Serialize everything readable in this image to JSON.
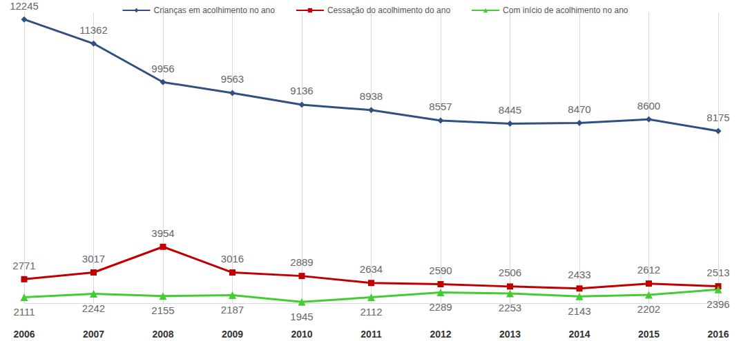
{
  "chart_data": {
    "type": "line",
    "categories": [
      "2006",
      "2007",
      "2008",
      "2009",
      "2010",
      "2011",
      "2012",
      "2013",
      "2014",
      "2015",
      "2016"
    ],
    "series": [
      {
        "name": "Crianças em acolhimento no ano",
        "color": "#2f5080",
        "marker": "diamond",
        "values": [
          12245,
          11362,
          9956,
          9563,
          9136,
          8938,
          8557,
          8445,
          8470,
          8600,
          8175
        ]
      },
      {
        "name": "Cessação do acolhimento do ano",
        "color": "#c00000",
        "marker": "square",
        "values": [
          2771,
          3017,
          3954,
          3016,
          2889,
          2634,
          2590,
          2506,
          2433,
          2612,
          2513
        ]
      },
      {
        "name": "Com início de acolhimento no ano",
        "color": "#44cc33",
        "marker": "triangle",
        "values": [
          2111,
          2242,
          2155,
          2187,
          1945,
          2112,
          2289,
          2253,
          2143,
          2202,
          2396
        ]
      }
    ],
    "ylim": [
      1900,
      12500
    ],
    "grid": true,
    "legend": "top",
    "data_labels": true,
    "tick_labels": "x"
  }
}
